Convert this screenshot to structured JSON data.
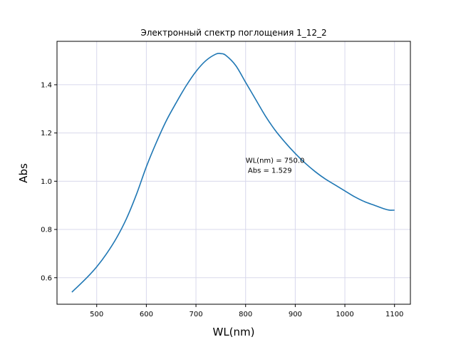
{
  "chart_data": {
    "type": "line",
    "title": "Электронный спектр поглощения 1_12_2",
    "xlabel": "WL(nm)",
    "ylabel": "Abs",
    "xlim": [
      420,
      1132
    ],
    "ylim": [
      0.49,
      1.58
    ],
    "x_ticks": [
      500,
      600,
      700,
      800,
      900,
      1000,
      1100
    ],
    "x_tick_labels": [
      "500",
      "600",
      "700",
      "800",
      "900",
      "1000",
      "1100"
    ],
    "y_ticks": [
      0.6,
      0.8,
      1.0,
      1.2,
      1.4
    ],
    "y_tick_labels": [
      "0.6",
      "0.8",
      "1.0",
      "1.2",
      "1.4"
    ],
    "grid": true,
    "line_color": "#1f77b4",
    "grid_color": "#d8d8ec",
    "series": [
      {
        "x": [
          450,
          480,
          500,
          520,
          540,
          560,
          580,
          600,
          620,
          640,
          660,
          680,
          700,
          720,
          740,
          750,
          760,
          780,
          800,
          820,
          840,
          860,
          880,
          900,
          920,
          940,
          960,
          980,
          1000,
          1020,
          1040,
          1060,
          1080,
          1090,
          1100
        ],
        "y": [
          0.54,
          0.6,
          0.645,
          0.7,
          0.765,
          0.845,
          0.945,
          1.06,
          1.16,
          1.25,
          1.325,
          1.395,
          1.455,
          1.5,
          1.527,
          1.529,
          1.522,
          1.48,
          1.41,
          1.34,
          1.27,
          1.21,
          1.16,
          1.115,
          1.075,
          1.04,
          1.01,
          0.985,
          0.96,
          0.935,
          0.915,
          0.9,
          0.885,
          0.88,
          0.88
        ]
      }
    ],
    "annotation": {
      "line1": "WL(nm) = 750.0",
      "line2": " Abs = 1.529",
      "x": 800,
      "y": 1.07
    }
  }
}
